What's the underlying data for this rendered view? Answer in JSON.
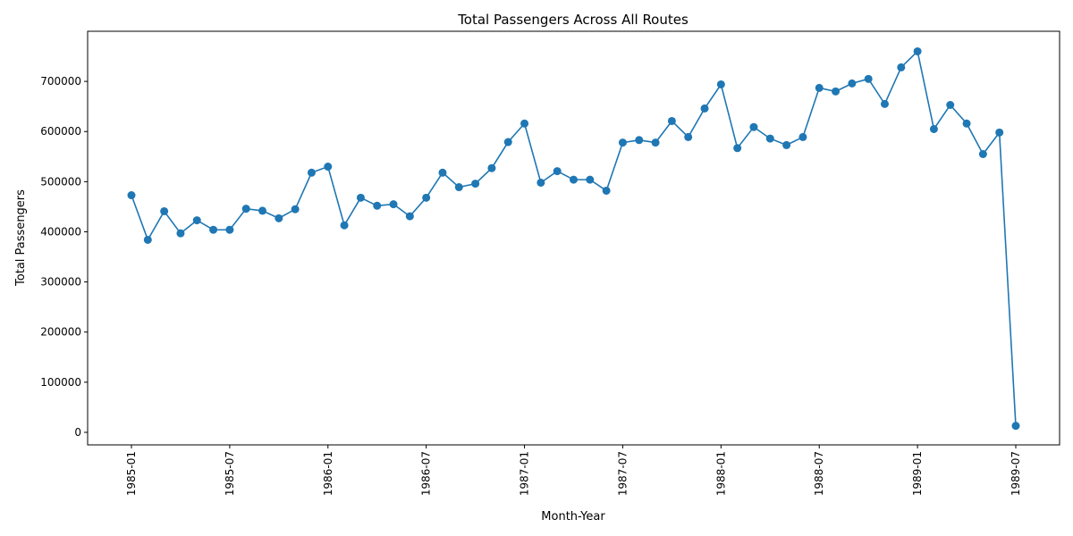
{
  "chart_data": {
    "type": "line",
    "title": "Total Passengers Across All Routes",
    "xlabel": "Month-Year",
    "ylabel": "Total Passengers",
    "x_tick_labels": [
      "1985-01",
      "1985-07",
      "1986-01",
      "1986-07",
      "1987-01",
      "1987-07",
      "1988-01",
      "1988-07",
      "1989-01",
      "1989-07"
    ],
    "y_tick_labels": [
      "0",
      "100000",
      "200000",
      "300000",
      "400000",
      "500000",
      "600000",
      "700000"
    ],
    "ylim": [
      -25000,
      800000
    ],
    "grid": false,
    "line_color": "#1f77b4",
    "marker": "circle",
    "series": [
      {
        "x": [
          "1985-01",
          "1985-02",
          "1985-03",
          "1985-04",
          "1985-05",
          "1985-06",
          "1985-07",
          "1985-08",
          "1985-09",
          "1985-10",
          "1985-11",
          "1985-12",
          "1986-01",
          "1986-02",
          "1986-03",
          "1986-04",
          "1986-05",
          "1986-06",
          "1986-07",
          "1986-08",
          "1986-09",
          "1986-10",
          "1986-11",
          "1986-12",
          "1987-01",
          "1987-02",
          "1987-03",
          "1987-04",
          "1987-05",
          "1987-06",
          "1987-07",
          "1987-08",
          "1987-09",
          "1987-10",
          "1987-11",
          "1987-12",
          "1988-01",
          "1988-02",
          "1988-03",
          "1988-04",
          "1988-05",
          "1988-06",
          "1988-07",
          "1988-08",
          "1988-09",
          "1988-10",
          "1988-11",
          "1988-12",
          "1989-01",
          "1989-02",
          "1989-03",
          "1989-04",
          "1989-05",
          "1989-06",
          "1989-07"
        ],
        "values": [
          473000,
          384000,
          441000,
          397000,
          423000,
          404000,
          404000,
          446000,
          442000,
          427000,
          445000,
          518000,
          530000,
          413000,
          468000,
          452000,
          455000,
          431000,
          468000,
          518000,
          489000,
          496000,
          527000,
          579000,
          616000,
          498000,
          521000,
          504000,
          504000,
          482000,
          578000,
          583000,
          578000,
          621000,
          589000,
          646000,
          694000,
          567000,
          609000,
          586000,
          573000,
          589000,
          687000,
          680000,
          696000,
          705000,
          655000,
          728000,
          760000,
          605000,
          653000,
          616000,
          555000,
          598000,
          13000
        ]
      }
    ]
  }
}
